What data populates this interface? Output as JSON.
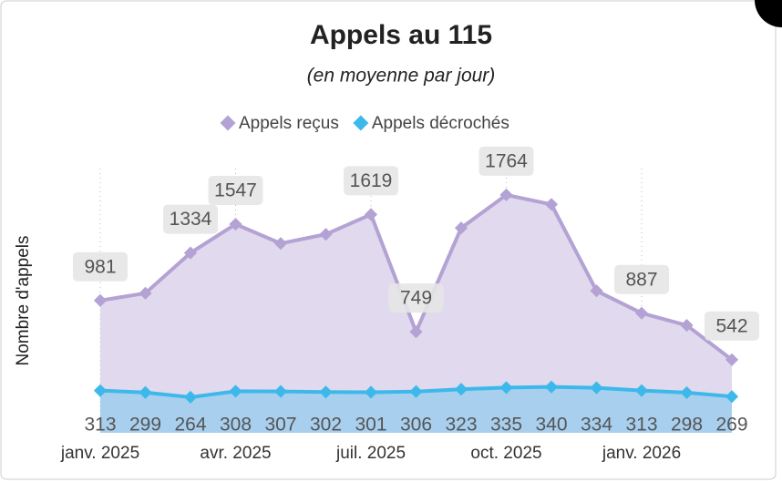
{
  "chart_data": {
    "type": "area",
    "title": "Appels au 115",
    "subtitle": "(en moyenne par jour)",
    "y_label": "Nombre d'appels",
    "categories": [
      "janv. 2025",
      null,
      null,
      "avr. 2025",
      null,
      null,
      "juil. 2025",
      null,
      null,
      "oct. 2025",
      null,
      null,
      "janv. 2026",
      null,
      null
    ],
    "series": [
      {
        "name": "Appels reçus",
        "color": "#b3a2d3",
        "fill": "#e1d9ed",
        "values": [
          981,
          1035,
          1334,
          1547,
          1404,
          1472,
          1619,
          749,
          1519,
          1764,
          1694,
          1053,
          887,
          797,
          542
        ],
        "value_labels": [
          "981",
          null,
          "1334",
          "1547",
          null,
          null,
          "1619",
          "749",
          null,
          "1764",
          null,
          null,
          "887",
          null,
          "542"
        ]
      },
      {
        "name": "Appels décrochés",
        "color": "#3cb9ea",
        "fill": "#a8cfee",
        "values": [
          313,
          299,
          264,
          308,
          307,
          302,
          301,
          306,
          323,
          335,
          340,
          334,
          313,
          298,
          269
        ]
      }
    ],
    "ylim": [
      0,
      2000
    ],
    "legend": "top",
    "grid": "x"
  }
}
